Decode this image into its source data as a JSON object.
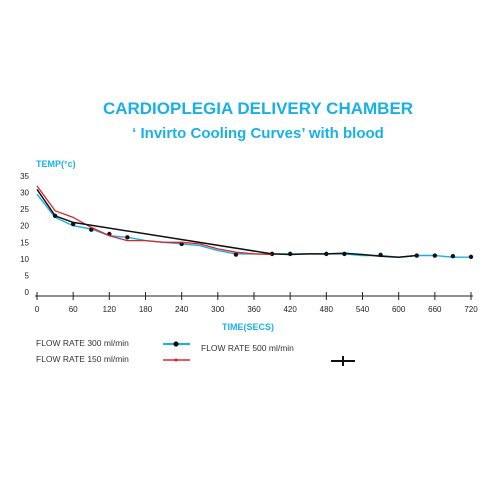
{
  "chart_data": {
    "type": "line",
    "title": "CARDIOPLEGIA DELIVERY CHAMBER",
    "subtitle": "‘ Invirto Cooling Curves’ with blood",
    "ylabel": "TEMP(°c)",
    "xlabel": "TIME(SECS)",
    "xlim": [
      0,
      720
    ],
    "ylim": [
      0,
      35
    ],
    "x_ticks": [
      0,
      60,
      120,
      180,
      240,
      300,
      360,
      420,
      480,
      540,
      600,
      660,
      720
    ],
    "y_ticks": [
      0,
      5,
      10,
      15,
      20,
      25,
      30,
      35
    ],
    "grid": false,
    "legend_position": "bottom-left",
    "series": [
      {
        "name": "FLOW RATE 300 ml/min",
        "color": "#1ab0e6",
        "marker": "circle",
        "x": [
          0,
          30,
          60,
          90,
          120,
          150,
          180,
          210,
          240,
          270,
          300,
          330,
          360,
          390,
          420,
          450,
          480,
          510,
          540,
          570,
          600,
          630,
          660,
          690,
          720
        ],
        "y": [
          29.5,
          22.5,
          20,
          19,
          17,
          16.5,
          15.5,
          15,
          14.5,
          14,
          12.5,
          11.5,
          11.5,
          11.5,
          11.5,
          11.5,
          11.5,
          11.5,
          11,
          11,
          10.5,
          11,
          11,
          10.5,
          10.5
        ],
        "markers_x": [
          30,
          60,
          90,
          120,
          150,
          240,
          330,
          390,
          420,
          480,
          510,
          570,
          630,
          660,
          690,
          720
        ],
        "markers_y": [
          23,
          20.5,
          18.8,
          17.5,
          16.5,
          14.5,
          11.3,
          11.5,
          11.5,
          11.5,
          11.5,
          11.2,
          11,
          11,
          10.8,
          10.6
        ]
      },
      {
        "name": "FLOW RATE 150 ml/min",
        "color": "#d62828",
        "marker": "dot",
        "x": [
          0,
          30,
          60,
          90,
          120,
          150,
          180,
          210,
          240,
          270,
          300,
          330,
          360,
          390
        ],
        "y": [
          32,
          24.5,
          22.5,
          19.5,
          17,
          15.5,
          15.5,
          15,
          15,
          14.5,
          13,
          12,
          11.5,
          11.3
        ],
        "markers_x": [],
        "markers_y": []
      },
      {
        "name": "FLOW RATE 500 ml/min",
        "color": "#111111",
        "marker": "plus",
        "x": [
          0,
          30,
          60,
          390,
          420,
          450,
          480,
          510,
          540,
          570,
          600,
          630
        ],
        "y": [
          31,
          23,
          21,
          11.5,
          11.3,
          11.5,
          11.5,
          11.7,
          11.3,
          10.8,
          10.5,
          11
        ],
        "markers_x": [],
        "markers_y": []
      }
    ]
  }
}
